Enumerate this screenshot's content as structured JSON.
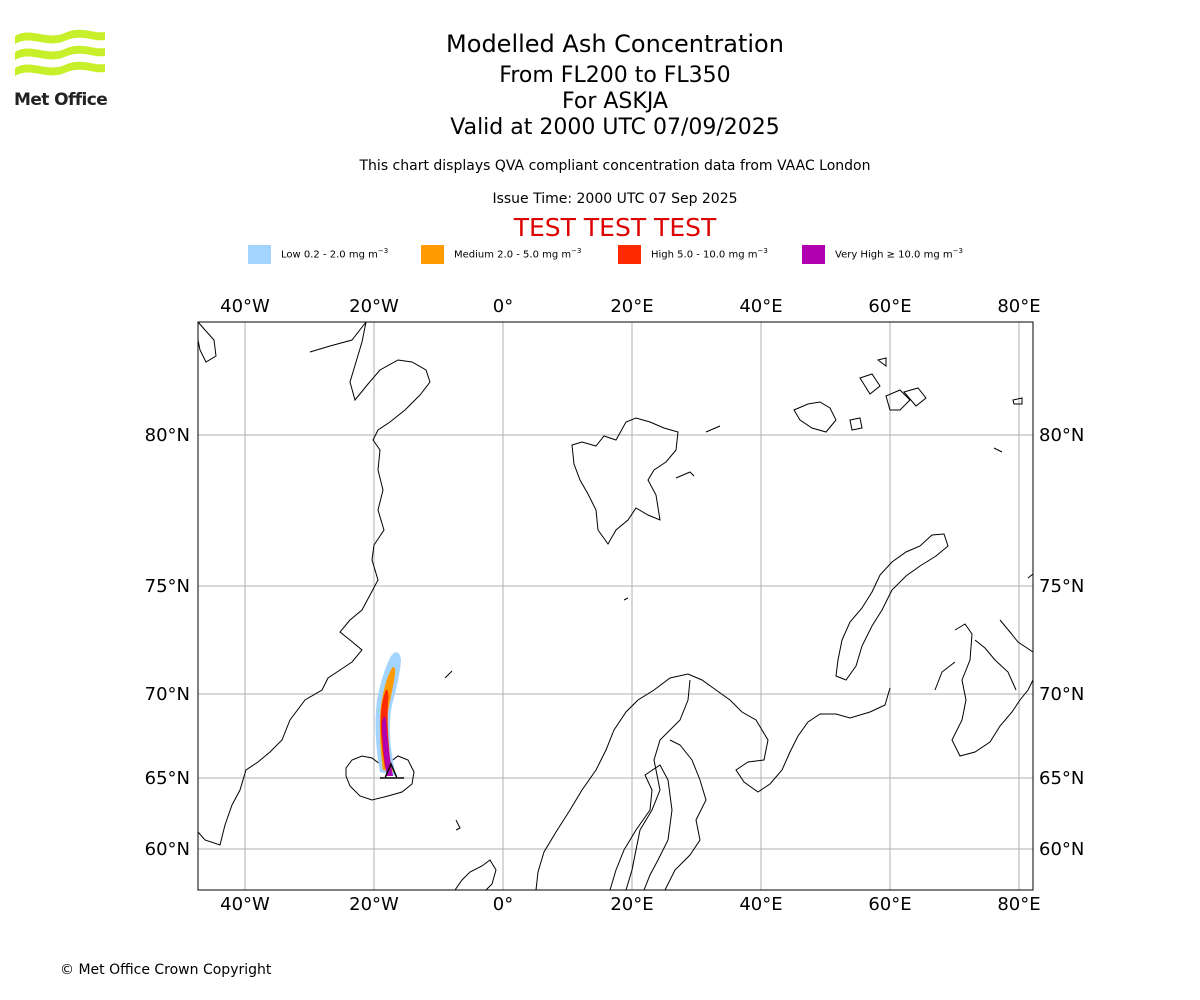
{
  "header": {
    "title": "Modelled Ash Concentration",
    "levels": "From FL200 to FL350",
    "volcano": "For ASKJA",
    "valid": "Valid at 2000 UTC 07/09/2025",
    "subtitle": "This chart displays QVA compliant concentration data from VAAC London",
    "issue_time": "Issue Time: 2000 UTC 07 Sep 2025",
    "test_banner": "TEST TEST TEST",
    "test_color": "#dd0000"
  },
  "logo": {
    "text": "Met Office",
    "color": "#c8f02a"
  },
  "legend": [
    {
      "label": "Low 0.2 - 2.0 mg m",
      "color": "#a3d4ff"
    },
    {
      "label": "Medium 2.0 - 5.0 mg m",
      "color": "#ff9a00"
    },
    {
      "label": "High 5.0 - 10.0 mg m",
      "color": "#ff2a00"
    },
    {
      "label": "Very High ≥ 10.0 mg m",
      "color": "#b000b0"
    }
  ],
  "legend_unit_exponent": "−3",
  "map": {
    "lon_labels": [
      "40°W",
      "20°W",
      "0°",
      "20°E",
      "40°E",
      "60°E",
      "80°E"
    ],
    "lat_labels": [
      "80°N",
      "75°N",
      "70°N",
      "65°N",
      "60°N"
    ],
    "volcano_marker": "triangle"
  },
  "footer": {
    "copyright": "© Met Office Crown Copyright"
  }
}
